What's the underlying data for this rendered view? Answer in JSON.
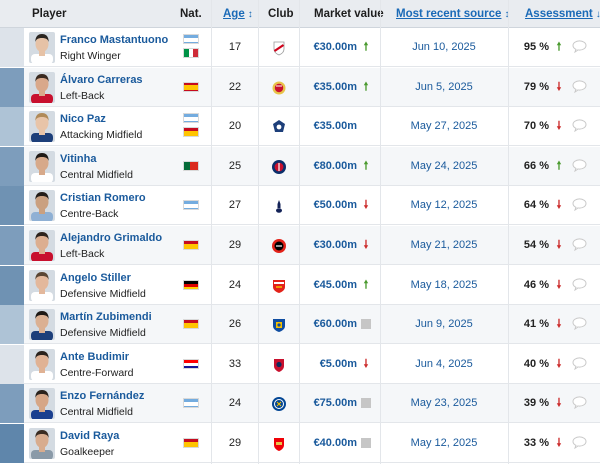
{
  "header": {
    "player": "Player",
    "nat": "Nat.",
    "age": "Age",
    "age_sort": "↕",
    "club": "Club",
    "market_value": "Market value",
    "most_recent_source": "Most recent source",
    "source_sort": "↕",
    "assessment": "Assessment",
    "assessment_sort": "↓"
  },
  "icons": {
    "trend_up": "arrow-up-icon",
    "trend_down": "arrow-down-icon",
    "trend_flat": "square-icon",
    "comment": "comment-bubble-icon"
  },
  "colors": {
    "link": "#1a5a9c",
    "up": "#4a9a2f",
    "down": "#cc2d2d",
    "flat": "#bdbdbd"
  },
  "rows": [
    {
      "name": "Franco Mastantuono",
      "position": "Right Winger",
      "age": "17",
      "flags": [
        "Argentina",
        "Italy"
      ],
      "club": "River Plate",
      "market_value": "€30.00m",
      "mv_trend": "up",
      "date": "Jun 10, 2025",
      "assessment": "95 %",
      "as_trend": "up",
      "strip": "#dde3ea",
      "skin": "#e6c2a6",
      "hair": "#2a2520",
      "shirt": "#ffffff"
    },
    {
      "name": "Álvaro Carreras",
      "position": "Left-Back",
      "age": "22",
      "flags": [
        "Spain"
      ],
      "club": "Benfica",
      "market_value": "€35.00m",
      "mv_trend": "up",
      "date": "Jun 5, 2025",
      "assessment": "79 %",
      "as_trend": "down",
      "strip": "#7d9dbc",
      "skin": "#d9a88a",
      "hair": "#3a2a20",
      "shirt": "#c8102e"
    },
    {
      "name": "Nico Paz",
      "position": "Attacking Midfield",
      "age": "20",
      "flags": [
        "Argentina",
        "Spain"
      ],
      "club": "Como",
      "market_value": "€35.00m",
      "mv_trend": "none",
      "date": "May 27, 2025",
      "assessment": "70 %",
      "as_trend": "down",
      "strip": "#aec3d6",
      "skin": "#e8c4a8",
      "hair": "#b08a58",
      "shirt": "#1d3f7a"
    },
    {
      "name": "Vitinha",
      "position": "Central Midfield",
      "age": "25",
      "flags": [
        "Portugal"
      ],
      "club": "Paris Saint-Germain",
      "market_value": "€80.00m",
      "mv_trend": "up",
      "date": "May 24, 2025",
      "assessment": "66 %",
      "as_trend": "up",
      "strip": "#7d9dbc",
      "skin": "#d7a98a",
      "hair": "#1f1a16",
      "shirt": "#ffffff"
    },
    {
      "name": "Cristian Romero",
      "position": "Centre-Back",
      "age": "27",
      "flags": [
        "Argentina"
      ],
      "club": "Tottenham Hotspur",
      "market_value": "€50.00m",
      "mv_trend": "down",
      "date": "May 12, 2025",
      "assessment": "64 %",
      "as_trend": "down",
      "strip": "#6f92b3",
      "skin": "#caa080",
      "hair": "#231d19",
      "shirt": "#8fb0d4"
    },
    {
      "name": "Alejandro Grimaldo",
      "position": "Left-Back",
      "age": "29",
      "flags": [
        "Spain"
      ],
      "club": "Bayer Leverkusen",
      "market_value": "€30.00m",
      "mv_trend": "down",
      "date": "May 21, 2025",
      "assessment": "54 %",
      "as_trend": "down",
      "strip": "#7d9dbc",
      "skin": "#dcae90",
      "hair": "#2d231c",
      "shirt": "#c8102e"
    },
    {
      "name": "Angelo Stiller",
      "position": "Defensive Midfield",
      "age": "24",
      "flags": [
        "Germany"
      ],
      "club": "VfB Stuttgart",
      "market_value": "€45.00m",
      "mv_trend": "up",
      "date": "May 18, 2025",
      "assessment": "46 %",
      "as_trend": "down",
      "strip": "#6f92b3",
      "skin": "#e3b89c",
      "hair": "#5a4634",
      "shirt": "#ffffff"
    },
    {
      "name": "Martín Zubimendi",
      "position": "Defensive Midfield",
      "age": "26",
      "flags": [
        "Spain"
      ],
      "club": "Real Sociedad",
      "market_value": "€60.00m",
      "mv_trend": "flat",
      "date": "Jun 9, 2025",
      "assessment": "41 %",
      "as_trend": "down",
      "strip": "#aec3d6",
      "skin": "#dbb092",
      "hair": "#1e1915",
      "shirt": "#1d3f7a"
    },
    {
      "name": "Ante Budimir",
      "position": "Centre-Forward",
      "age": "33",
      "flags": [
        "Croatia"
      ],
      "club": "Osasuna",
      "market_value": "€5.00m",
      "mv_trend": "down",
      "date": "Jun 4, 2025",
      "assessment": "40 %",
      "as_trend": "down",
      "strip": "#dde3ea",
      "skin": "#e0b294",
      "hair": "#2a221c",
      "shirt": "#ffffff"
    },
    {
      "name": "Enzo Fernández",
      "position": "Central Midfield",
      "age": "24",
      "flags": [
        "Argentina"
      ],
      "club": "Chelsea",
      "market_value": "€75.00m",
      "mv_trend": "flat",
      "date": "May 23, 2025",
      "assessment": "39 %",
      "as_trend": "down",
      "strip": "#7d9dbc",
      "skin": "#d6a686",
      "hair": "#2a221c",
      "shirt": "#1a3f8f"
    },
    {
      "name": "David Raya",
      "position": "Goalkeeper",
      "age": "29",
      "flags": [
        "Spain"
      ],
      "club": "Arsenal",
      "market_value": "€40.00m",
      "mv_trend": "flat",
      "date": "May 12, 2025",
      "assessment": "33 %",
      "as_trend": "down",
      "strip": "#5f86ab",
      "skin": "#d8ac8e",
      "hair": "#3a2c22",
      "shirt": "#8a9aa8"
    }
  ]
}
